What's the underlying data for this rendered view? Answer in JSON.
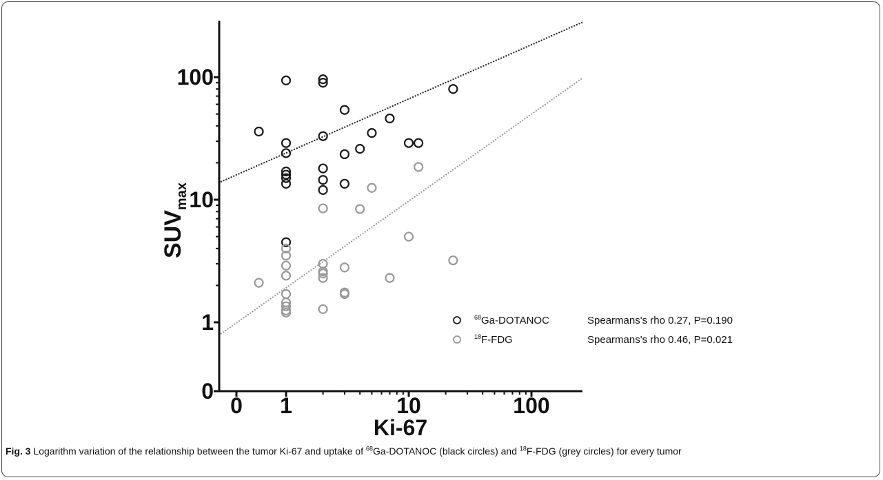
{
  "chart_data": {
    "type": "scatter",
    "title": "",
    "xlabel": "Ki-67",
    "ylabel": "SUV",
    "ylabel_subscript": "max",
    "xscale": "log",
    "yscale": "log",
    "x_ticks": [
      "0",
      "1",
      "10",
      "100"
    ],
    "y_ticks": [
      "0",
      "1",
      "10",
      "100"
    ],
    "legend_position": "bottom-right",
    "series": [
      {
        "name": "68Ga-DOTANOC",
        "isotope": "68",
        "label": "Ga-DOTANOC",
        "stat": "Spearmans's rho 0.27, P=0.190",
        "color": "#1a1a1a",
        "trend": {
          "x": [
            0.5,
            23
          ],
          "y": [
            17.7,
            96
          ]
        },
        "points": [
          {
            "x": 1,
            "y": 94
          },
          {
            "x": 2,
            "y": 96
          },
          {
            "x": 2,
            "y": 90
          },
          {
            "x": 23,
            "y": 80
          },
          {
            "x": 3,
            "y": 54
          },
          {
            "x": 7,
            "y": 46
          },
          {
            "x": 0.6,
            "y": 36
          },
          {
            "x": 5,
            "y": 35
          },
          {
            "x": 2,
            "y": 33
          },
          {
            "x": 1,
            "y": 29
          },
          {
            "x": 10,
            "y": 29
          },
          {
            "x": 12,
            "y": 29
          },
          {
            "x": 4,
            "y": 26
          },
          {
            "x": 1,
            "y": 24
          },
          {
            "x": 3,
            "y": 23.5
          },
          {
            "x": 2,
            "y": 18
          },
          {
            "x": 1,
            "y": 17
          },
          {
            "x": 1,
            "y": 16
          },
          {
            "x": 1,
            "y": 15
          },
          {
            "x": 2,
            "y": 14.5
          },
          {
            "x": 1,
            "y": 13.5
          },
          {
            "x": 3,
            "y": 13.5
          },
          {
            "x": 2,
            "y": 12
          },
          {
            "x": 1,
            "y": 4.5
          }
        ]
      },
      {
        "name": "18F-FDG",
        "isotope": "18",
        "label": "F-FDG",
        "stat": "Spearmans's rho 0.46, P=0.021",
        "color": "#9a9a9a",
        "trend": {
          "x": [
            0.5,
            23
          ],
          "y": [
            1.17,
            17.6
          ]
        },
        "points": [
          {
            "x": 12,
            "y": 18.5
          },
          {
            "x": 5,
            "y": 12.5
          },
          {
            "x": 2,
            "y": 8.5
          },
          {
            "x": 4,
            "y": 8.4
          },
          {
            "x": 10,
            "y": 5
          },
          {
            "x": 1,
            "y": 4
          },
          {
            "x": 1,
            "y": 3.5
          },
          {
            "x": 2,
            "y": 3
          },
          {
            "x": 1,
            "y": 2.9
          },
          {
            "x": 23,
            "y": 3.2
          },
          {
            "x": 3,
            "y": 2.8
          },
          {
            "x": 2,
            "y": 2.6
          },
          {
            "x": 2,
            "y": 2.5
          },
          {
            "x": 1,
            "y": 2.4
          },
          {
            "x": 2,
            "y": 2.3
          },
          {
            "x": 7,
            "y": 2.3
          },
          {
            "x": 0.6,
            "y": 2.1
          },
          {
            "x": 1,
            "y": 1.7
          },
          {
            "x": 3,
            "y": 1.75
          },
          {
            "x": 3,
            "y": 1.7
          },
          {
            "x": 1,
            "y": 1.45
          },
          {
            "x": 1,
            "y": 1.35
          },
          {
            "x": 1,
            "y": 1.25
          },
          {
            "x": 2,
            "y": 1.28
          },
          {
            "x": 1,
            "y": 1.2
          }
        ]
      }
    ]
  },
  "caption": {
    "fig_label": "Fig. 3",
    "text_1": " Logarithm variation of the relationship between the tumor Ki-67 and uptake of ",
    "sup_1": "68",
    "text_2": "Ga-DOTANOC (black circles) and ",
    "sup_2": "18",
    "text_3": "F-FDG (grey circles) for every tumor"
  }
}
